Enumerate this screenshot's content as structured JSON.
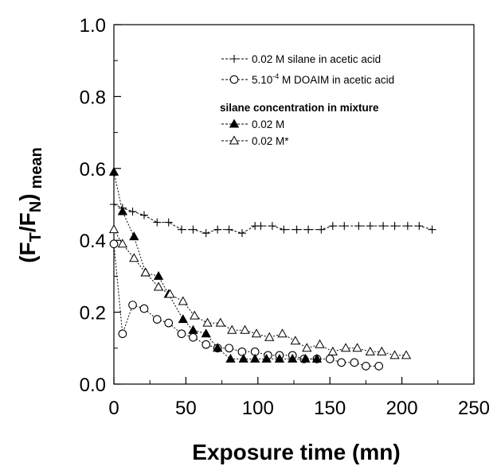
{
  "chart_data": {
    "type": "line",
    "xlabel": "Exposure time (mn)",
    "ylabel": {
      "open": "(F",
      "sub1": "T",
      "mid": "/F",
      "sub2": "N",
      "close": ")",
      "subscript": "mean"
    },
    "xlim": [
      0,
      250
    ],
    "ylim": [
      0.0,
      1.0
    ],
    "xticks": [
      "0",
      "50",
      "100",
      "150",
      "200",
      "250"
    ],
    "yticks": [
      "0.0",
      "0.2",
      "0.4",
      "0.6",
      "0.8",
      "1.0"
    ],
    "grid": false,
    "legend_placement": "top-right",
    "legend": {
      "entry1": "0.02 M silane in acetic acid",
      "entry2_pre": "5.10",
      "entry2_sup": "-4",
      "entry2_post": " M DOAIM in acetic acid",
      "heading": "silane concentration in mixture",
      "entry3": "0.02 M",
      "entry4": "0.02 M*"
    },
    "series": [
      {
        "marker": "plus",
        "x": [
          0,
          6,
          13,
          21,
          30,
          38,
          47,
          55,
          64,
          72,
          80,
          89,
          98,
          102,
          110,
          118,
          127,
          135,
          144,
          152,
          160,
          170,
          178,
          187,
          195,
          204,
          212,
          221
        ],
        "y": [
          0.5,
          0.49,
          0.48,
          0.47,
          0.45,
          0.45,
          0.43,
          0.43,
          0.42,
          0.43,
          0.43,
          0.42,
          0.44,
          0.44,
          0.44,
          0.43,
          0.43,
          0.43,
          0.43,
          0.44,
          0.44,
          0.44,
          0.44,
          0.44,
          0.44,
          0.44,
          0.44,
          0.43
        ]
      },
      {
        "marker": "circle-open",
        "x": [
          0,
          6,
          13,
          21,
          30,
          38,
          47,
          55,
          64,
          72,
          80,
          89,
          98,
          107,
          115,
          124,
          132,
          141,
          150,
          158,
          167,
          175,
          184
        ],
        "y": [
          0.39,
          0.14,
          0.22,
          0.21,
          0.18,
          0.17,
          0.14,
          0.13,
          0.11,
          0.1,
          0.1,
          0.09,
          0.09,
          0.08,
          0.08,
          0.08,
          0.07,
          0.07,
          0.07,
          0.06,
          0.06,
          0.05,
          0.05
        ]
      },
      {
        "marker": "triangle-filled",
        "x": [
          0,
          6,
          14,
          22,
          31,
          38,
          48,
          55,
          64,
          72,
          81,
          90,
          98,
          106,
          115,
          124,
          133,
          141
        ],
        "y": [
          0.59,
          0.48,
          0.41,
          0.31,
          0.3,
          0.25,
          0.18,
          0.15,
          0.14,
          0.1,
          0.07,
          0.07,
          0.07,
          0.07,
          0.07,
          0.07,
          0.07,
          0.07
        ]
      },
      {
        "marker": "triangle-open",
        "x": [
          0,
          6,
          14,
          22,
          31,
          39,
          48,
          56,
          65,
          74,
          82,
          91,
          99,
          108,
          117,
          126,
          134,
          143,
          152,
          161,
          169,
          178,
          186,
          195,
          203
        ],
        "y": [
          0.43,
          0.39,
          0.35,
          0.31,
          0.27,
          0.25,
          0.23,
          0.19,
          0.17,
          0.17,
          0.15,
          0.15,
          0.14,
          0.13,
          0.14,
          0.12,
          0.1,
          0.11,
          0.09,
          0.1,
          0.1,
          0.09,
          0.09,
          0.08,
          0.08
        ]
      }
    ]
  }
}
